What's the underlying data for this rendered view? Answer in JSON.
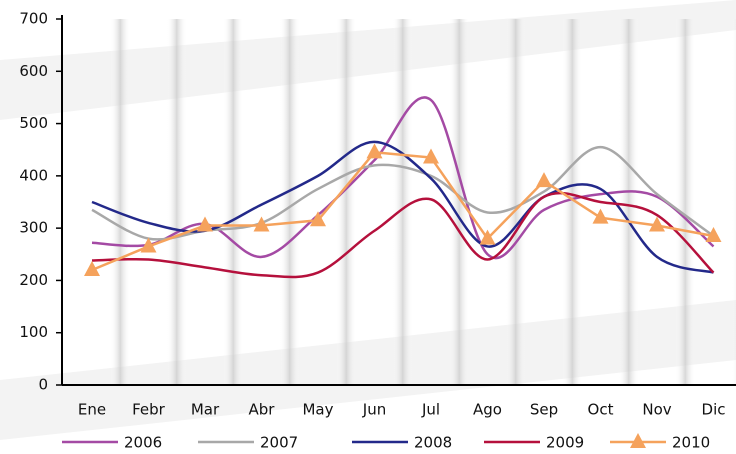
{
  "chart_data": {
    "type": "line",
    "categories": [
      "Ene",
      "Febr",
      "Mar",
      "Abr",
      "May",
      "Jun",
      "Jul",
      "Ago",
      "Sep",
      "Oct",
      "Nov",
      "Dic"
    ],
    "series": [
      {
        "name": "2006",
        "color": "#a44aa4",
        "values": [
          272,
          268,
          308,
          245,
          325,
          430,
          545,
          250,
          335,
          365,
          360,
          265
        ]
      },
      {
        "name": "2007",
        "color": "#a8a8a8",
        "values": [
          335,
          280,
          295,
          310,
          375,
          420,
          400,
          330,
          370,
          455,
          365,
          285
        ]
      },
      {
        "name": "2008",
        "color": "#23298a",
        "values": [
          350,
          310,
          295,
          345,
          400,
          465,
          395,
          265,
          360,
          375,
          245,
          215
        ]
      },
      {
        "name": "2009",
        "color": "#b5103c",
        "values": [
          238,
          240,
          225,
          210,
          215,
          295,
          355,
          240,
          360,
          350,
          325,
          215
        ]
      },
      {
        "name": "2010",
        "color": "#f5a25c",
        "values": [
          220,
          265,
          305,
          305,
          315,
          445,
          435,
          280,
          390,
          320,
          305,
          285
        ],
        "marker": "triangle"
      }
    ],
    "ylim": [
      0,
      700
    ],
    "yticks": [
      0,
      100,
      200,
      300,
      400,
      500,
      600,
      700
    ],
    "legend": "bottom"
  }
}
